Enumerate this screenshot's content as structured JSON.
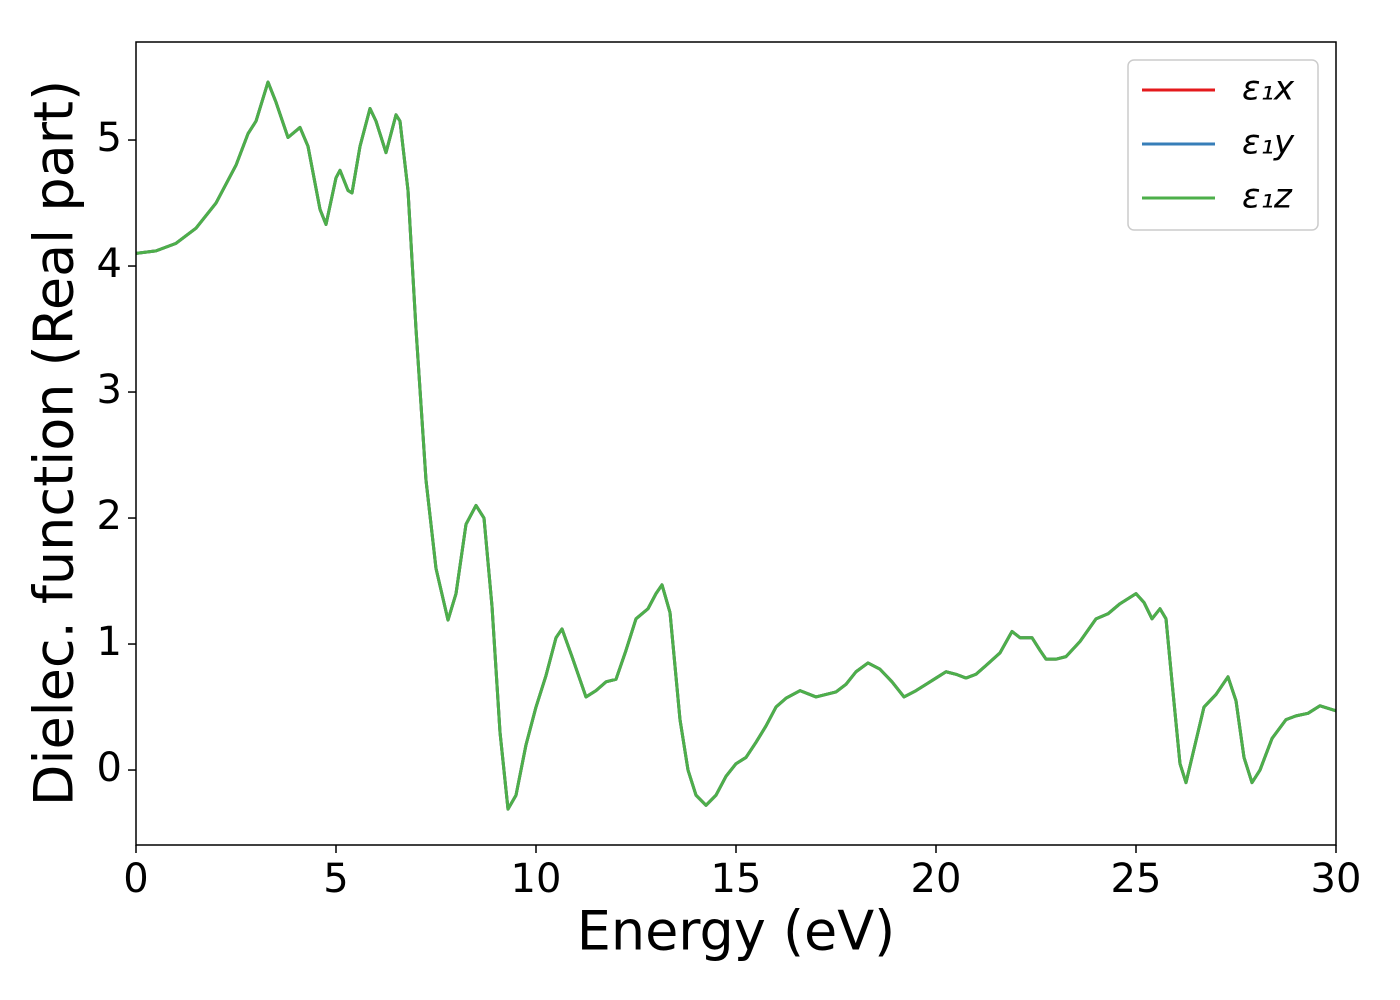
{
  "chart_data": {
    "type": "line",
    "xlabel": "Energy (eV)",
    "ylabel": "Dielec. function (Real part)",
    "xlim": [
      0,
      30
    ],
    "ylim": [
      -0.595,
      5.778
    ],
    "xticks": [
      0,
      5,
      10,
      15,
      20,
      25,
      30
    ],
    "yticks": [
      0,
      1,
      2,
      3,
      4,
      5
    ],
    "legend": "upper right",
    "x": [
      0,
      0.5,
      1.0,
      1.5,
      2.0,
      2.5,
      2.8,
      3.0,
      3.3,
      3.5,
      3.8,
      4.1,
      4.3,
      4.6,
      4.75,
      5.0,
      5.1,
      5.3,
      5.4,
      5.6,
      5.85,
      6.0,
      6.25,
      6.5,
      6.6,
      6.8,
      7.0,
      7.25,
      7.5,
      7.8,
      8.0,
      8.25,
      8.5,
      8.7,
      8.9,
      9.1,
      9.3,
      9.5,
      9.75,
      10.0,
      10.25,
      10.5,
      10.65,
      10.9,
      11.25,
      11.5,
      11.75,
      12.0,
      12.25,
      12.5,
      12.8,
      13.0,
      13.15,
      13.35,
      13.6,
      13.8,
      14.0,
      14.25,
      14.5,
      14.75,
      15.0,
      15.25,
      15.5,
      15.75,
      16.0,
      16.25,
      16.6,
      17.0,
      17.5,
      17.75,
      18.0,
      18.3,
      18.6,
      18.9,
      19.2,
      19.5,
      19.75,
      20.0,
      20.25,
      20.5,
      20.75,
      21.0,
      21.25,
      21.6,
      21.9,
      22.1,
      22.4,
      22.6,
      22.75,
      23.0,
      23.25,
      23.6,
      24.0,
      24.3,
      24.6,
      25.0,
      25.2,
      25.4,
      25.6,
      25.75,
      25.9,
      26.1,
      26.25,
      26.4,
      26.7,
      27.0,
      27.3,
      27.5,
      27.7,
      27.9,
      28.1,
      28.4,
      28.75,
      29.0,
      29.3,
      29.6,
      30.0
    ],
    "series": [
      {
        "name": "ε₁x",
        "color": "#e41a1c",
        "values": [
          4.1,
          4.12,
          4.18,
          4.3,
          4.5,
          4.8,
          5.05,
          5.15,
          5.46,
          5.3,
          5.02,
          5.1,
          4.95,
          4.45,
          4.33,
          4.7,
          4.76,
          4.6,
          4.58,
          4.95,
          5.25,
          5.15,
          4.9,
          5.2,
          5.15,
          4.6,
          3.5,
          2.3,
          1.6,
          1.19,
          1.4,
          1.95,
          2.1,
          2.0,
          1.3,
          0.3,
          -0.31,
          -0.2,
          0.2,
          0.5,
          0.75,
          1.05,
          1.12,
          0.9,
          0.58,
          0.63,
          0.7,
          0.72,
          0.95,
          1.2,
          1.28,
          1.4,
          1.47,
          1.25,
          0.4,
          0.0,
          -0.2,
          -0.28,
          -0.2,
          -0.05,
          0.05,
          0.1,
          0.22,
          0.35,
          0.5,
          0.57,
          0.63,
          0.58,
          0.62,
          0.68,
          0.78,
          0.85,
          0.8,
          0.7,
          0.58,
          0.63,
          0.68,
          0.73,
          0.78,
          0.76,
          0.73,
          0.76,
          0.83,
          0.93,
          1.1,
          1.05,
          1.05,
          0.95,
          0.88,
          0.88,
          0.9,
          1.02,
          1.2,
          1.24,
          1.32,
          1.4,
          1.33,
          1.2,
          1.28,
          1.2,
          0.7,
          0.05,
          -0.1,
          0.1,
          0.5,
          0.6,
          0.74,
          0.55,
          0.1,
          -0.1,
          0.0,
          0.25,
          0.4,
          0.43,
          0.45,
          0.51,
          0.47
        ]
      },
      {
        "name": "ε₁y",
        "color": "#377eb8",
        "values": [
          4.1,
          4.12,
          4.18,
          4.3,
          4.5,
          4.8,
          5.05,
          5.15,
          5.46,
          5.3,
          5.02,
          5.1,
          4.95,
          4.45,
          4.33,
          4.7,
          4.76,
          4.6,
          4.58,
          4.95,
          5.25,
          5.15,
          4.9,
          5.2,
          5.15,
          4.6,
          3.5,
          2.3,
          1.6,
          1.19,
          1.4,
          1.95,
          2.1,
          2.0,
          1.3,
          0.3,
          -0.31,
          -0.2,
          0.2,
          0.5,
          0.75,
          1.05,
          1.12,
          0.9,
          0.58,
          0.63,
          0.7,
          0.72,
          0.95,
          1.2,
          1.28,
          1.4,
          1.47,
          1.25,
          0.4,
          0.0,
          -0.2,
          -0.28,
          -0.2,
          -0.05,
          0.05,
          0.1,
          0.22,
          0.35,
          0.5,
          0.57,
          0.63,
          0.58,
          0.62,
          0.68,
          0.78,
          0.85,
          0.8,
          0.7,
          0.58,
          0.63,
          0.68,
          0.73,
          0.78,
          0.76,
          0.73,
          0.76,
          0.83,
          0.93,
          1.1,
          1.05,
          1.05,
          0.95,
          0.88,
          0.88,
          0.9,
          1.02,
          1.2,
          1.24,
          1.32,
          1.4,
          1.33,
          1.2,
          1.28,
          1.2,
          0.7,
          0.05,
          -0.1,
          0.1,
          0.5,
          0.6,
          0.74,
          0.55,
          0.1,
          -0.1,
          0.0,
          0.25,
          0.4,
          0.43,
          0.45,
          0.51,
          0.47
        ]
      },
      {
        "name": "ε₁z",
        "color": "#4daf4a",
        "values": [
          4.1,
          4.12,
          4.18,
          4.3,
          4.5,
          4.8,
          5.05,
          5.15,
          5.46,
          5.3,
          5.02,
          5.1,
          4.95,
          4.45,
          4.33,
          4.7,
          4.76,
          4.6,
          4.58,
          4.95,
          5.25,
          5.15,
          4.9,
          5.2,
          5.15,
          4.6,
          3.5,
          2.3,
          1.6,
          1.19,
          1.4,
          1.95,
          2.1,
          2.0,
          1.3,
          0.3,
          -0.31,
          -0.2,
          0.2,
          0.5,
          0.75,
          1.05,
          1.12,
          0.9,
          0.58,
          0.63,
          0.7,
          0.72,
          0.95,
          1.2,
          1.28,
          1.4,
          1.47,
          1.25,
          0.4,
          0.0,
          -0.2,
          -0.28,
          -0.2,
          -0.05,
          0.05,
          0.1,
          0.22,
          0.35,
          0.5,
          0.57,
          0.63,
          0.58,
          0.62,
          0.68,
          0.78,
          0.85,
          0.8,
          0.7,
          0.58,
          0.63,
          0.68,
          0.73,
          0.78,
          0.76,
          0.73,
          0.76,
          0.83,
          0.93,
          1.1,
          1.05,
          1.05,
          0.95,
          0.88,
          0.88,
          0.9,
          1.02,
          1.2,
          1.24,
          1.32,
          1.4,
          1.33,
          1.2,
          1.28,
          1.2,
          0.7,
          0.05,
          -0.1,
          0.1,
          0.5,
          0.6,
          0.74,
          0.55,
          0.1,
          -0.1,
          0.0,
          0.25,
          0.4,
          0.43,
          0.45,
          0.51,
          0.47
        ]
      }
    ]
  }
}
